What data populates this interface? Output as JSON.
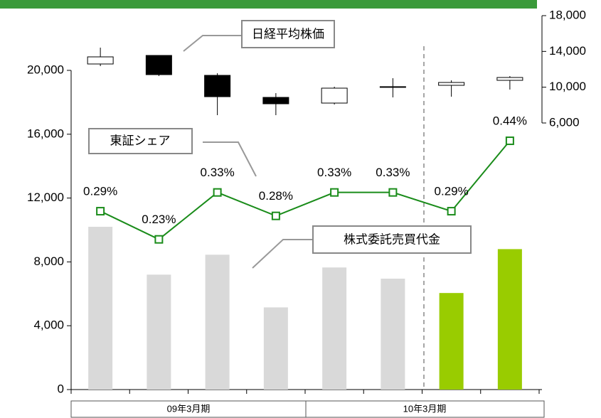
{
  "chart_data": [
    {
      "type": "bar",
      "name": "株式委託売買代金",
      "categories": [
        null,
        null,
        null,
        null,
        null,
        null,
        null,
        null
      ],
      "groups": [
        "09年3月期",
        "10年3月期"
      ],
      "values": [
        10200,
        7200,
        8450,
        5150,
        7650,
        6950,
        6050,
        8800
      ],
      "colors": [
        "#d9d9d9",
        "#d9d9d9",
        "#d9d9d9",
        "#d9d9d9",
        "#d9d9d9",
        "#d9d9d9",
        "#99cc00",
        "#99cc00"
      ],
      "ylim": [
        0,
        20000
      ],
      "yticks": [
        0,
        {
          "value": 4000,
          "label": "4,000"
        },
        {
          "value": 8000,
          "label": "8,000"
        },
        {
          "value": 12000,
          "label": "12,000"
        },
        {
          "value": 16000,
          "label": "16,000"
        },
        {
          "value": 20000,
          "label": "20,000"
        }
      ]
    },
    {
      "type": "line",
      "name": "東証シェア",
      "values": [
        0.29,
        0.23,
        0.33,
        0.28,
        0.33,
        0.33,
        0.29,
        0.44
      ],
      "value_labels": [
        "0.29%",
        "0.23%",
        "0.33%",
        "0.28%",
        "0.33%",
        "0.33%",
        "0.29%",
        "0.44%"
      ],
      "color": "#1a8c1a",
      "ylim": [
        -0.09,
        0.59
      ]
    },
    {
      "type": "candlestick",
      "name": "日経平均株価",
      "open": [
        12596,
        13550,
        11325,
        8861,
        8225,
        10030,
        10212,
        10768
      ],
      "high": [
        14424,
        13550,
        11563,
        9338,
        10053,
        11007,
        10768,
        11245
      ],
      "low": [
        12358,
        11245,
        6874,
        6874,
        8066,
        8861,
        8941,
        9735
      ],
      "close": [
        13391,
        11404,
        8940,
        8146,
        9894,
        10060,
        10530,
        11086
      ],
      "ylim": [
        6000,
        18000
      ],
      "yticks": [
        {
          "value": 6000,
          "label": "6,000"
        },
        {
          "value": 10000,
          "label": "10,000"
        },
        {
          "value": 14000,
          "label": "14,000"
        },
        {
          "value": 18000,
          "label": "18,000"
        }
      ]
    }
  ]
}
